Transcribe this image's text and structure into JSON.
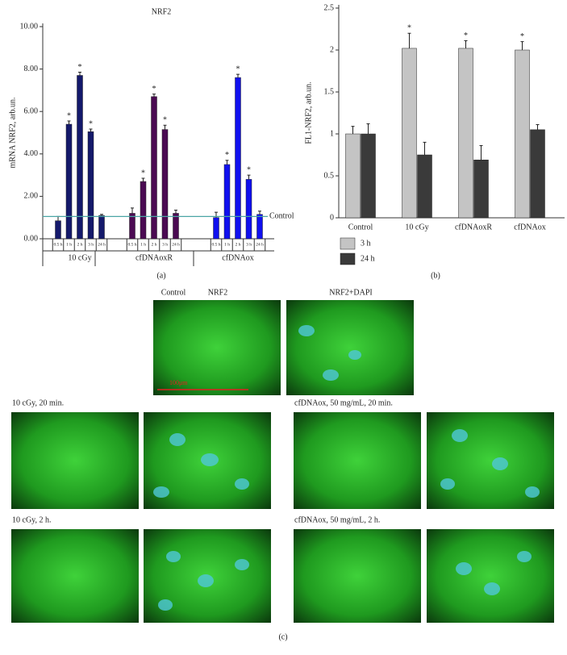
{
  "chart_data": [
    {
      "type": "bar",
      "title": "NRF2",
      "y_label": "mRNA NRF2, arb.un.",
      "panel_label": "(a)",
      "categories": [
        "0.5 h",
        "1 h",
        "2 h",
        "3 h",
        "24 h"
      ],
      "series": [
        {
          "name": "10 cGy",
          "color": "#14196b",
          "values": [
            0.85,
            5.4,
            7.7,
            5.05,
            1.1
          ],
          "errors": [
            0.2,
            0.15,
            0.15,
            0.12,
            0.05
          ],
          "significance": [
            null,
            "*",
            "*",
            "*",
            null
          ]
        },
        {
          "name": "cfDNAoxR",
          "color": "#4a0a52",
          "values": [
            1.2,
            2.7,
            6.7,
            5.15,
            1.2
          ],
          "errors": [
            0.25,
            0.15,
            0.12,
            0.2,
            0.15
          ],
          "significance": [
            null,
            "*",
            "*",
            "*",
            null
          ]
        },
        {
          "name": "cfDNAox",
          "color": "#1010ee",
          "values": [
            1.0,
            3.5,
            7.6,
            2.8,
            1.15
          ],
          "errors": [
            0.25,
            0.2,
            0.15,
            0.2,
            0.15
          ],
          "significance": [
            null,
            "*",
            "*",
            "*",
            null
          ]
        }
      ],
      "reference": {
        "value": 1.05,
        "label": "Control",
        "color": "#4aa6a6"
      },
      "ylim": [
        0,
        10
      ],
      "yticks": [
        {
          "value": 0,
          "label": "0.00"
        },
        {
          "value": 2,
          "label": "2.00"
        },
        {
          "value": 4,
          "label": "4.00"
        },
        {
          "value": 6,
          "label": "6.00"
        },
        {
          "value": 8,
          "label": "8.00"
        },
        {
          "value": 10,
          "label": "10.00"
        }
      ]
    },
    {
      "type": "bar",
      "y_label": "FL1-NRF2, arb.un.",
      "panel_label": "(b)",
      "categories": [
        "Control",
        "10 cGy",
        "cfDNAoxR",
        "cfDNAox"
      ],
      "series": [
        {
          "name": "3 h",
          "color": "#c4c4c4",
          "values": [
            1.0,
            2.02,
            2.02,
            2.0
          ],
          "errors": [
            0.09,
            0.18,
            0.09,
            0.1
          ],
          "significance": [
            null,
            "*",
            "*",
            "*"
          ]
        },
        {
          "name": "24 h",
          "color": "#3a3a3a",
          "values": [
            1.0,
            0.75,
            0.69,
            1.05
          ],
          "errors": [
            0.12,
            0.15,
            0.17,
            0.06
          ],
          "significance": [
            null,
            null,
            null,
            null
          ]
        }
      ],
      "ylim": [
        0,
        2.5
      ],
      "yticks": [
        0,
        0.5,
        1,
        1.5,
        2,
        2.5
      ],
      "legend": "bottom-left"
    }
  ],
  "figure_c": {
    "panel_label": "(c)",
    "control_label": "Control",
    "nrf2_label": "NRF2",
    "merge_label": "NRF2+DAPI",
    "scale_bar": "100μm",
    "rows": [
      "10 cGy, 20 min.",
      "cfDNAox, 50 mg/mL, 20 min.",
      "10 cGy, 2 h.",
      "cfDNAox, 50 mg/mL, 2 h."
    ]
  }
}
